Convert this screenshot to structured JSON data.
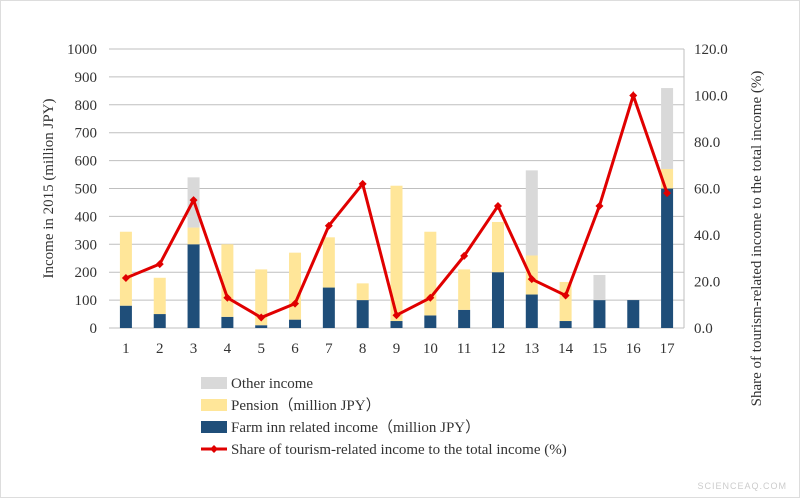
{
  "chart_data": {
    "type": "bar",
    "categories": [
      "1",
      "2",
      "3",
      "4",
      "5",
      "6",
      "7",
      "8",
      "9",
      "10",
      "11",
      "12",
      "13",
      "14",
      "15",
      "16",
      "17"
    ],
    "ylabel": "Income in 2015 (million JPY)",
    "y2label": "Share of tourism-related income to the total income (%)",
    "ylim": [
      0,
      1000
    ],
    "yticks": [
      0,
      100,
      200,
      300,
      400,
      500,
      600,
      700,
      800,
      900,
      1000
    ],
    "y2lim": [
      0,
      120
    ],
    "y2ticks": [
      "0.0",
      "20.0",
      "40.0",
      "60.0",
      "80.0",
      "100.0",
      "120.0"
    ],
    "grid": true,
    "legend": "bottom",
    "series": [
      {
        "name": "Farm inn related income（million JPY）",
        "kind": "stacked-bar",
        "color": "#1f4e79",
        "values": [
          80,
          50,
          300,
          40,
          10,
          30,
          145,
          100,
          25,
          45,
          65,
          200,
          120,
          25,
          100,
          100,
          500
        ]
      },
      {
        "name": "Pension（million JPY）",
        "kind": "stacked-bar",
        "color": "#ffe699",
        "values": [
          265,
          130,
          60,
          260,
          200,
          240,
          180,
          60,
          485,
          300,
          145,
          180,
          140,
          140,
          0,
          0,
          70
        ]
      },
      {
        "name": "Other income",
        "kind": "stacked-bar",
        "color": "#d9d9d9",
        "values": [
          0,
          0,
          180,
          0,
          0,
          0,
          0,
          0,
          0,
          0,
          0,
          0,
          305,
          0,
          90,
          0,
          290
        ]
      },
      {
        "name": "Share of tourism-related income to the total income (%)",
        "kind": "line",
        "axis": "right",
        "color": "#e00000",
        "values": [
          21.5,
          27.5,
          55,
          13,
          4.5,
          10.5,
          44,
          62,
          5.5,
          13,
          31,
          52.5,
          21,
          14,
          52.5,
          100,
          58
        ]
      }
    ]
  },
  "watermark": "SCIENCEAQ.COM"
}
